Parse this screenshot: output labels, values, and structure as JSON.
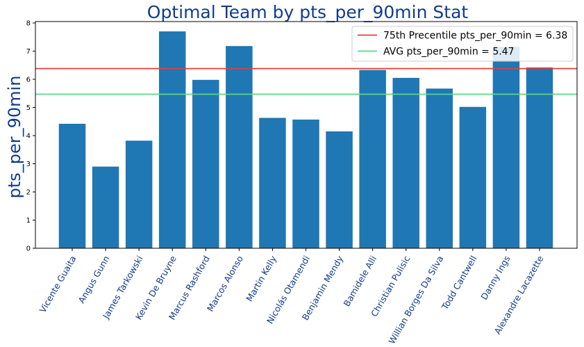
{
  "chart_data": {
    "type": "bar",
    "title": "Optimal Team by pts_per_90min Stat",
    "xlabel": "",
    "ylabel": "pts_per_90min",
    "ylim": [
      0,
      8.05
    ],
    "yticks": [
      0,
      1,
      2,
      3,
      4,
      5,
      6,
      7,
      8
    ],
    "grid": false,
    "legend_position": "top-right",
    "bar_color": "#1f77b4",
    "categories": [
      "Vicente Guaita",
      "Angus Gunn",
      "James Tarkowski",
      "Kevin De Bruyne",
      "Marcus Rashford",
      "Marcos Alonso",
      "Martin Kelly",
      "Nicolás Otamendi",
      "Benjamin Mendy",
      "Bamidele Alli",
      "Christian Pulisic",
      "Willian Borges Da Silva",
      "Todd Cantwell",
      "Danny Ings",
      "Alexandre Lacazette"
    ],
    "values": [
      4.42,
      2.9,
      3.82,
      7.7,
      5.98,
      7.18,
      4.63,
      4.57,
      4.15,
      6.33,
      6.05,
      5.67,
      5.02,
      7.15,
      6.42
    ],
    "reference_lines": [
      {
        "label": "75th Precentile pts_per_90min = 6.38",
        "value": 6.38,
        "color": "#e0403c"
      },
      {
        "label": "AVG pts_per_90min = 5.47",
        "value": 5.47,
        "color": "#5cd68a"
      }
    ]
  }
}
